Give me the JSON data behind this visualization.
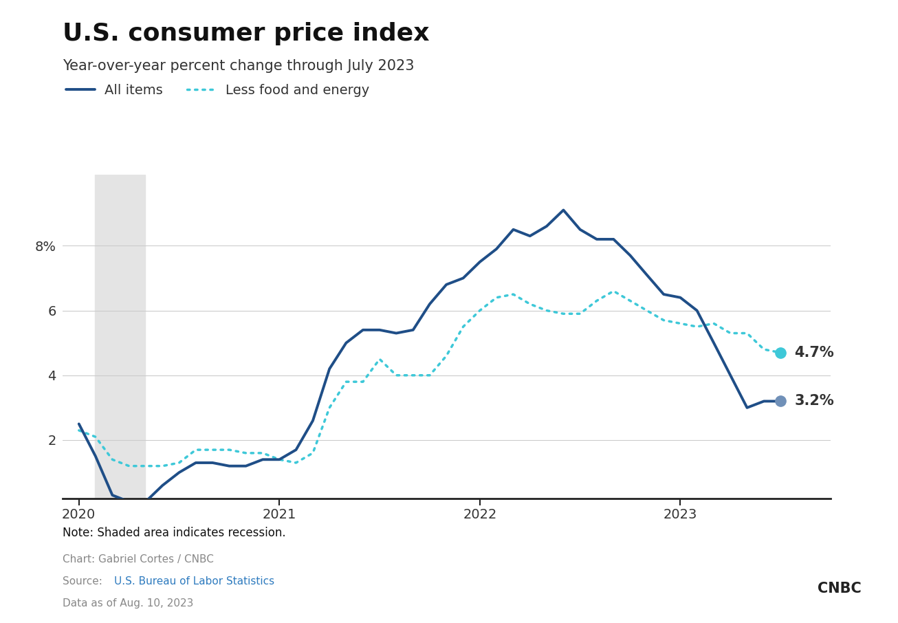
{
  "title": "U.S. consumer price index",
  "subtitle": "Year-over-year percent change through July 2023",
  "legend_all_items": "All items",
  "legend_core": "Less food and energy",
  "ylabel_ticks": [
    2,
    4,
    6,
    8
  ],
  "xlim_start": 2019.92,
  "xlim_end": 2023.75,
  "ylim_bottom": 0.2,
  "ylim_top": 10.2,
  "recession_start": 2020.08,
  "recession_end": 2020.33,
  "all_items_color": "#1f4e87",
  "core_color": "#3ec8d8",
  "end_dot_all_color": "#7090b8",
  "end_dot_core_color": "#3ec8d8",
  "note_text": "Note: Shaded area indicates recession.",
  "chart_credit": "Chart: Gabriel Cortes / CNBC",
  "source_text": "Source: ",
  "source_link_text": "U.S. Bureau of Labor Statistics",
  "source_link_color": "#2e7bbf",
  "data_date": "Data as of Aug. 10, 2023",
  "end_label_all": "3.2%",
  "end_label_core": "4.7%",
  "all_items_x": [
    2020.0,
    2020.083,
    2020.167,
    2020.25,
    2020.333,
    2020.417,
    2020.5,
    2020.583,
    2020.667,
    2020.75,
    2020.833,
    2020.917,
    2021.0,
    2021.083,
    2021.167,
    2021.25,
    2021.333,
    2021.417,
    2021.5,
    2021.583,
    2021.667,
    2021.75,
    2021.833,
    2021.917,
    2022.0,
    2022.083,
    2022.167,
    2022.25,
    2022.333,
    2022.417,
    2022.5,
    2022.583,
    2022.667,
    2022.75,
    2022.833,
    2022.917,
    2023.0,
    2023.083,
    2023.167,
    2023.25,
    2023.333,
    2023.417,
    2023.5
  ],
  "all_items_y": [
    2.5,
    1.5,
    0.3,
    0.1,
    0.1,
    0.6,
    1.0,
    1.3,
    1.3,
    1.2,
    1.2,
    1.4,
    1.4,
    1.7,
    2.6,
    4.2,
    5.0,
    5.4,
    5.4,
    5.3,
    5.4,
    6.2,
    6.8,
    7.0,
    7.5,
    7.9,
    8.5,
    8.3,
    8.6,
    9.1,
    8.5,
    8.2,
    8.2,
    7.7,
    7.1,
    6.5,
    6.4,
    6.0,
    5.0,
    4.0,
    3.0,
    3.2,
    3.2
  ],
  "core_x": [
    2020.0,
    2020.083,
    2020.167,
    2020.25,
    2020.333,
    2020.417,
    2020.5,
    2020.583,
    2020.667,
    2020.75,
    2020.833,
    2020.917,
    2021.0,
    2021.083,
    2021.167,
    2021.25,
    2021.333,
    2021.417,
    2021.5,
    2021.583,
    2021.667,
    2021.75,
    2021.833,
    2021.917,
    2022.0,
    2022.083,
    2022.167,
    2022.25,
    2022.333,
    2022.417,
    2022.5,
    2022.583,
    2022.667,
    2022.75,
    2022.833,
    2022.917,
    2023.0,
    2023.083,
    2023.167,
    2023.25,
    2023.333,
    2023.417,
    2023.5
  ],
  "core_y": [
    2.3,
    2.1,
    1.4,
    1.2,
    1.2,
    1.2,
    1.3,
    1.7,
    1.7,
    1.7,
    1.6,
    1.6,
    1.4,
    1.3,
    1.6,
    3.0,
    3.8,
    3.8,
    4.5,
    4.0,
    4.0,
    4.0,
    4.6,
    5.5,
    6.0,
    6.4,
    6.5,
    6.2,
    6.0,
    5.9,
    5.9,
    6.3,
    6.6,
    6.3,
    6.0,
    5.7,
    5.6,
    5.5,
    5.6,
    5.3,
    5.3,
    4.8,
    4.7
  ],
  "background_color": "#ffffff",
  "grid_color": "#cccccc",
  "recession_color": "#e4e4e4",
  "axis_label_color": "#333333",
  "note_color": "#111111",
  "footer_gray_color": "#888888"
}
